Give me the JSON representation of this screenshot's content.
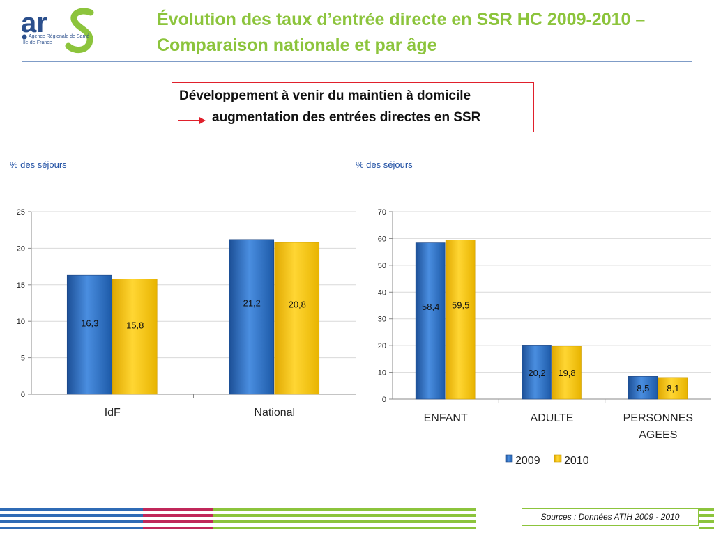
{
  "header": {
    "logo": {
      "name": "ars",
      "line1": "Agence Régionale de Santé",
      "line2": "Île-de-France"
    },
    "title": "Évolution des taux d’entrée directe en SSR HC 2009-2010 – Comparaison nationale et par âge"
  },
  "callout": {
    "line1": "Développement à venir du maintien à domicile",
    "line2": "augmentation des entrées directes en SSR"
  },
  "charts": {
    "left_ylabel": "% des séjours",
    "right_ylabel": "% des séjours"
  },
  "footer": {
    "source": "Sources : Données ATIH 2009 - 2010"
  },
  "colors": {
    "series_2009": "#2d6fc2",
    "series_2010": "#f2c200",
    "title_green": "#8cc43c",
    "callout_border": "#e0202c"
  },
  "chart_data": [
    {
      "type": "bar",
      "categories": [
        "IdF",
        "National"
      ],
      "series": [
        {
          "name": "2009",
          "values": [
            16.3,
            21.2
          ]
        },
        {
          "name": "2010",
          "values": [
            15.8,
            20.8
          ]
        }
      ],
      "data_labels": [
        [
          "16,3",
          "21,2"
        ],
        [
          "15,8",
          "20,8"
        ]
      ],
      "ylabel": "% des séjours",
      "ylim": [
        0,
        25
      ],
      "yticks": [
        0,
        5,
        10,
        15,
        20,
        25
      ],
      "legend": "none"
    },
    {
      "type": "bar",
      "categories": [
        "ENFANT",
        "ADULTE",
        "PERSONNES AGEES"
      ],
      "series": [
        {
          "name": "2009",
          "values": [
            58.4,
            20.2,
            8.5
          ]
        },
        {
          "name": "2010",
          "values": [
            59.5,
            19.8,
            8.1
          ]
        }
      ],
      "data_labels": [
        [
          "58,4",
          "20,2",
          "8,5"
        ],
        [
          "59,5",
          "19,8",
          "8,1"
        ]
      ],
      "ylabel": "% des séjours",
      "ylim": [
        0,
        70
      ],
      "yticks": [
        0,
        10,
        20,
        30,
        40,
        50,
        60,
        70
      ],
      "legend": "bottom"
    }
  ]
}
